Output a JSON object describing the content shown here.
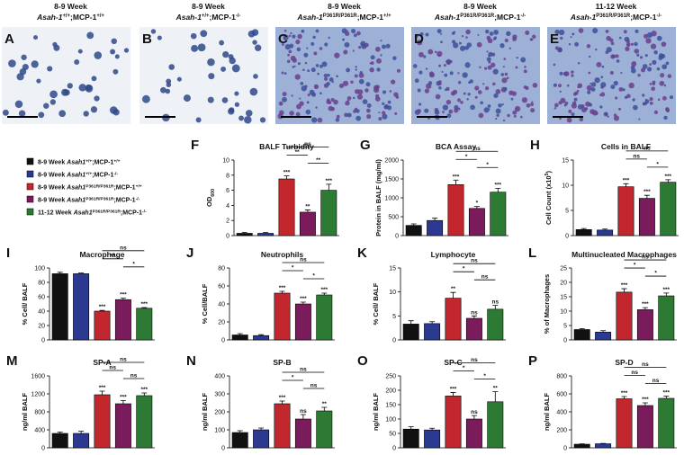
{
  "images": [
    {
      "label": "A",
      "week": "8-9 Week",
      "genotype": [
        {
          "text": "Asah-1",
          "italic": true
        },
        {
          "text": "+/+",
          "sup": true
        },
        {
          "text": ";MCP-1"
        },
        {
          "text": "+/+",
          "sup": true
        }
      ]
    },
    {
      "label": "B",
      "week": "8-9 Week",
      "genotype": [
        {
          "text": "Asah-1",
          "italic": true
        },
        {
          "text": "+/+",
          "sup": true
        },
        {
          "text": ";MCP-1"
        },
        {
          "text": "-/-",
          "sup": true
        }
      ]
    },
    {
      "label": "C",
      "week": "8-9 Week",
      "genotype": [
        {
          "text": "Asah-1",
          "italic": true
        },
        {
          "text": "P361R/P361R",
          "sup": true
        },
        {
          "text": ";MCP-1"
        },
        {
          "text": "+/+",
          "sup": true
        }
      ]
    },
    {
      "label": "D",
      "week": "8-9 Week",
      "genotype": [
        {
          "text": "Asah-1",
          "italic": true
        },
        {
          "text": "P361R/P361R",
          "sup": true
        },
        {
          "text": ";MCP-1"
        },
        {
          "text": "-/-",
          "sup": true
        }
      ]
    },
    {
      "label": "E",
      "week": "11-12 Week",
      "genotype": [
        {
          "text": "Asah-1",
          "italic": true
        },
        {
          "text": "P361R/P361R",
          "sup": true
        },
        {
          "text": ";MCP-1"
        },
        {
          "text": "-/-",
          "sup": true
        }
      ]
    }
  ],
  "legend": [
    {
      "color": "#111111",
      "parts": [
        {
          "text": "8-9 Week "
        },
        {
          "text": "Asah1",
          "italic": true
        },
        {
          "text": "+/+",
          "sup": true
        },
        {
          "text": ";MCP-1"
        },
        {
          "text": "+/+",
          "sup": true
        }
      ]
    },
    {
      "color": "#2b3990",
      "parts": [
        {
          "text": "8-9 Week "
        },
        {
          "text": "Asah1",
          "italic": true
        },
        {
          "text": "+/+",
          "sup": true
        },
        {
          "text": ";MCP-1"
        },
        {
          "text": "-/-",
          "sup": true
        }
      ]
    },
    {
      "color": "#c1272d",
      "parts": [
        {
          "text": "8-9 Week "
        },
        {
          "text": "Asah1",
          "italic": true
        },
        {
          "text": "P361R/P361R",
          "sup": true
        },
        {
          "text": ";MCP-1"
        },
        {
          "text": "+/+",
          "sup": true
        }
      ]
    },
    {
      "color": "#7a1c5c",
      "parts": [
        {
          "text": "8-9 Week "
        },
        {
          "text": "Asah1",
          "italic": true
        },
        {
          "text": "P361R/P361R",
          "sup": true
        },
        {
          "text": ";MCP-1"
        },
        {
          "text": "-/-",
          "sup": true
        }
      ]
    },
    {
      "color": "#2d7a34",
      "parts": [
        {
          "text": "11-12 Week "
        },
        {
          "text": "Asah1",
          "italic": true
        },
        {
          "text": "P361R/P361R",
          "sup": true
        },
        {
          "text": ";MCP-1"
        },
        {
          "text": "-/-",
          "sup": true
        }
      ]
    }
  ],
  "chart_data": [
    {
      "type": "bar",
      "label": "F",
      "title": "BALF Turbidity",
      "ylabel": [
        {
          "text": "OD"
        },
        {
          "text": "600",
          "sub": true
        }
      ],
      "ylim": [
        0,
        10
      ],
      "yticks": [
        0,
        2,
        4,
        6,
        8,
        10
      ],
      "values": [
        0.3,
        0.3,
        7.5,
        3.1,
        6.0
      ],
      "errors": [
        0.1,
        0.1,
        0.4,
        0.3,
        0.8
      ],
      "annotations": [
        null,
        null,
        "***",
        "**",
        "***"
      ],
      "comparisons": [
        {
          "between": [
            2,
            4
          ],
          "label": "ns"
        },
        {
          "between": [
            2,
            3
          ],
          "label": "**"
        },
        {
          "between": [
            3,
            4
          ],
          "label": "**"
        }
      ]
    },
    {
      "type": "bar",
      "label": "G",
      "title": "BCA Assay",
      "ylabel": [
        {
          "text": "Protein in BALF (mg/ml)"
        }
      ],
      "ylim": [
        0,
        2000
      ],
      "yticks": [
        0,
        500,
        1000,
        1500,
        2000
      ],
      "values": [
        270,
        400,
        1350,
        720,
        1150
      ],
      "errors": [
        40,
        60,
        120,
        50,
        100
      ],
      "annotations": [
        null,
        null,
        "***",
        "*",
        "***"
      ],
      "comparisons": [
        {
          "between": [
            2,
            4
          ],
          "label": "ns"
        },
        {
          "between": [
            2,
            3
          ],
          "label": "*"
        },
        {
          "between": [
            3,
            4
          ],
          "label": "*"
        }
      ]
    },
    {
      "type": "bar",
      "label": "H",
      "title": "Cells in BALF",
      "ylabel": [
        {
          "text": "Cell Count (x10"
        },
        {
          "text": "5",
          "sup": true
        },
        {
          "text": ")"
        }
      ],
      "ylim": [
        0,
        15
      ],
      "yticks": [
        0,
        5,
        10,
        15
      ],
      "values": [
        1.2,
        1.1,
        9.7,
        7.4,
        10.6
      ],
      "errors": [
        0.2,
        0.2,
        0.6,
        0.6,
        0.5
      ],
      "annotations": [
        null,
        null,
        "***",
        "***",
        "***"
      ],
      "comparisons": [
        {
          "between": [
            2,
            4
          ],
          "label": "ns"
        },
        {
          "between": [
            2,
            3
          ],
          "label": "ns"
        },
        {
          "between": [
            3,
            4
          ],
          "label": "*"
        }
      ]
    },
    {
      "type": "bar",
      "label": "I",
      "title": "Macrophage",
      "ylabel": [
        {
          "text": "% Cell/ BALF"
        }
      ],
      "ylim": [
        0,
        100
      ],
      "yticks": [
        0,
        20,
        40,
        60,
        80,
        100
      ],
      "values": [
        92,
        92,
        40,
        56,
        44
      ],
      "errors": [
        2,
        1,
        1,
        2,
        1
      ],
      "annotations": [
        null,
        null,
        "***",
        "***",
        "***"
      ],
      "comparisons": [
        {
          "between": [
            2,
            4
          ],
          "label": "ns"
        },
        {
          "between": [
            2,
            3
          ],
          "label": "**"
        },
        {
          "between": [
            3,
            4
          ],
          "label": "*"
        }
      ]
    },
    {
      "type": "bar",
      "label": "J",
      "title": "Neutrophils",
      "ylabel": [
        {
          "text": "% Cell/BALF"
        }
      ],
      "ylim": [
        0,
        80
      ],
      "yticks": [
        0,
        20,
        40,
        60,
        80
      ],
      "values": [
        5.5,
        4.8,
        52,
        40,
        50
      ],
      "errors": [
        1.5,
        1,
        2,
        2,
        2
      ],
      "annotations": [
        null,
        null,
        "***",
        "***",
        "***"
      ],
      "comparisons": [
        {
          "between": [
            2,
            4
          ],
          "label": "ns"
        },
        {
          "between": [
            2,
            3
          ],
          "label": "*"
        },
        {
          "between": [
            3,
            4
          ],
          "label": "*"
        }
      ]
    },
    {
      "type": "bar",
      "label": "K",
      "title": "Lymphocyte",
      "ylabel": [
        {
          "text": "% Cell/ BALF"
        }
      ],
      "ylim": [
        0,
        15
      ],
      "yticks": [
        0,
        5,
        10,
        15
      ],
      "values": [
        3.3,
        3.4,
        8.7,
        4.5,
        6.4
      ],
      "errors": [
        0.7,
        0.4,
        1.2,
        0.5,
        0.8
      ],
      "annotations": [
        null,
        null,
        "**",
        "ns",
        "ns"
      ],
      "comparisons": [
        {
          "between": [
            2,
            4
          ],
          "label": "ns"
        },
        {
          "between": [
            2,
            3
          ],
          "label": "*"
        },
        {
          "between": [
            3,
            4
          ],
          "label": "ns"
        }
      ]
    },
    {
      "type": "bar",
      "label": "L",
      "title": "Multinucleated Macrophages",
      "ylabel": [
        {
          "text": "% of Macrophages"
        }
      ],
      "ylim": [
        0,
        25
      ],
      "yticks": [
        0,
        5,
        10,
        15,
        20,
        25
      ],
      "values": [
        3.6,
        2.7,
        16.6,
        10.5,
        15.3
      ],
      "errors": [
        0.3,
        0.5,
        1.2,
        0.7,
        1.0
      ],
      "annotations": [
        null,
        null,
        "***",
        "***",
        "***"
      ],
      "comparisons": [
        {
          "between": [
            2,
            4
          ],
          "label": "ns"
        },
        {
          "between": [
            2,
            3
          ],
          "label": "*"
        },
        {
          "between": [
            3,
            4
          ],
          "label": "*"
        }
      ]
    },
    {
      "type": "bar",
      "label": "M",
      "title": "SP-A",
      "ylabel": [
        {
          "text": "ng/ml BALF"
        }
      ],
      "ylim": [
        0,
        1600
      ],
      "yticks": [
        0,
        400,
        800,
        1200,
        1600
      ],
      "values": [
        320,
        320,
        1180,
        980,
        1160
      ],
      "errors": [
        30,
        50,
        80,
        70,
        60
      ],
      "annotations": [
        null,
        null,
        "***",
        "***",
        "***"
      ],
      "comparisons": [
        {
          "between": [
            2,
            4
          ],
          "label": "ns"
        },
        {
          "between": [
            2,
            3
          ],
          "label": "ns"
        },
        {
          "between": [
            3,
            4
          ],
          "label": "ns"
        }
      ]
    },
    {
      "type": "bar",
      "label": "N",
      "title": "SP-B",
      "ylabel": [
        {
          "text": "ng/ml BALF"
        }
      ],
      "ylim": [
        0,
        400
      ],
      "yticks": [
        0,
        100,
        200,
        300,
        400
      ],
      "values": [
        85,
        100,
        245,
        160,
        205
      ],
      "errors": [
        10,
        10,
        15,
        25,
        20
      ],
      "annotations": [
        null,
        null,
        "***",
        "ns",
        "**"
      ],
      "comparisons": [
        {
          "between": [
            2,
            4
          ],
          "label": "ns"
        },
        {
          "between": [
            2,
            3
          ],
          "label": "*"
        },
        {
          "between": [
            3,
            4
          ],
          "label": "ns"
        }
      ]
    },
    {
      "type": "bar",
      "label": "O",
      "title": "SP-C",
      "ylabel": [
        {
          "text": "ng/ml BALF"
        }
      ],
      "ylim": [
        0,
        250
      ],
      "yticks": [
        0,
        50,
        100,
        150,
        200,
        250
      ],
      "values": [
        65,
        62,
        180,
        100,
        160
      ],
      "errors": [
        8,
        6,
        12,
        12,
        35
      ],
      "annotations": [
        null,
        null,
        "***",
        "ns",
        "**"
      ],
      "comparisons": [
        {
          "between": [
            2,
            4
          ],
          "label": "ns"
        },
        {
          "between": [
            2,
            3
          ],
          "label": "*"
        },
        {
          "between": [
            3,
            4
          ],
          "label": "*"
        }
      ]
    },
    {
      "type": "bar",
      "label": "P",
      "title": "SP-D",
      "ylabel": [
        {
          "text": "ng/ml BALF"
        }
      ],
      "ylim": [
        0,
        800
      ],
      "yticks": [
        0,
        200,
        400,
        600,
        800
      ],
      "values": [
        40,
        45,
        545,
        470,
        550
      ],
      "errors": [
        3,
        3,
        25,
        30,
        25
      ],
      "annotations": [
        null,
        null,
        "***",
        "***",
        "***"
      ],
      "comparisons": [
        {
          "between": [
            2,
            4
          ],
          "label": "ns"
        },
        {
          "between": [
            2,
            3
          ],
          "label": "ns"
        },
        {
          "between": [
            3,
            4
          ],
          "label": "ns"
        }
      ]
    }
  ]
}
